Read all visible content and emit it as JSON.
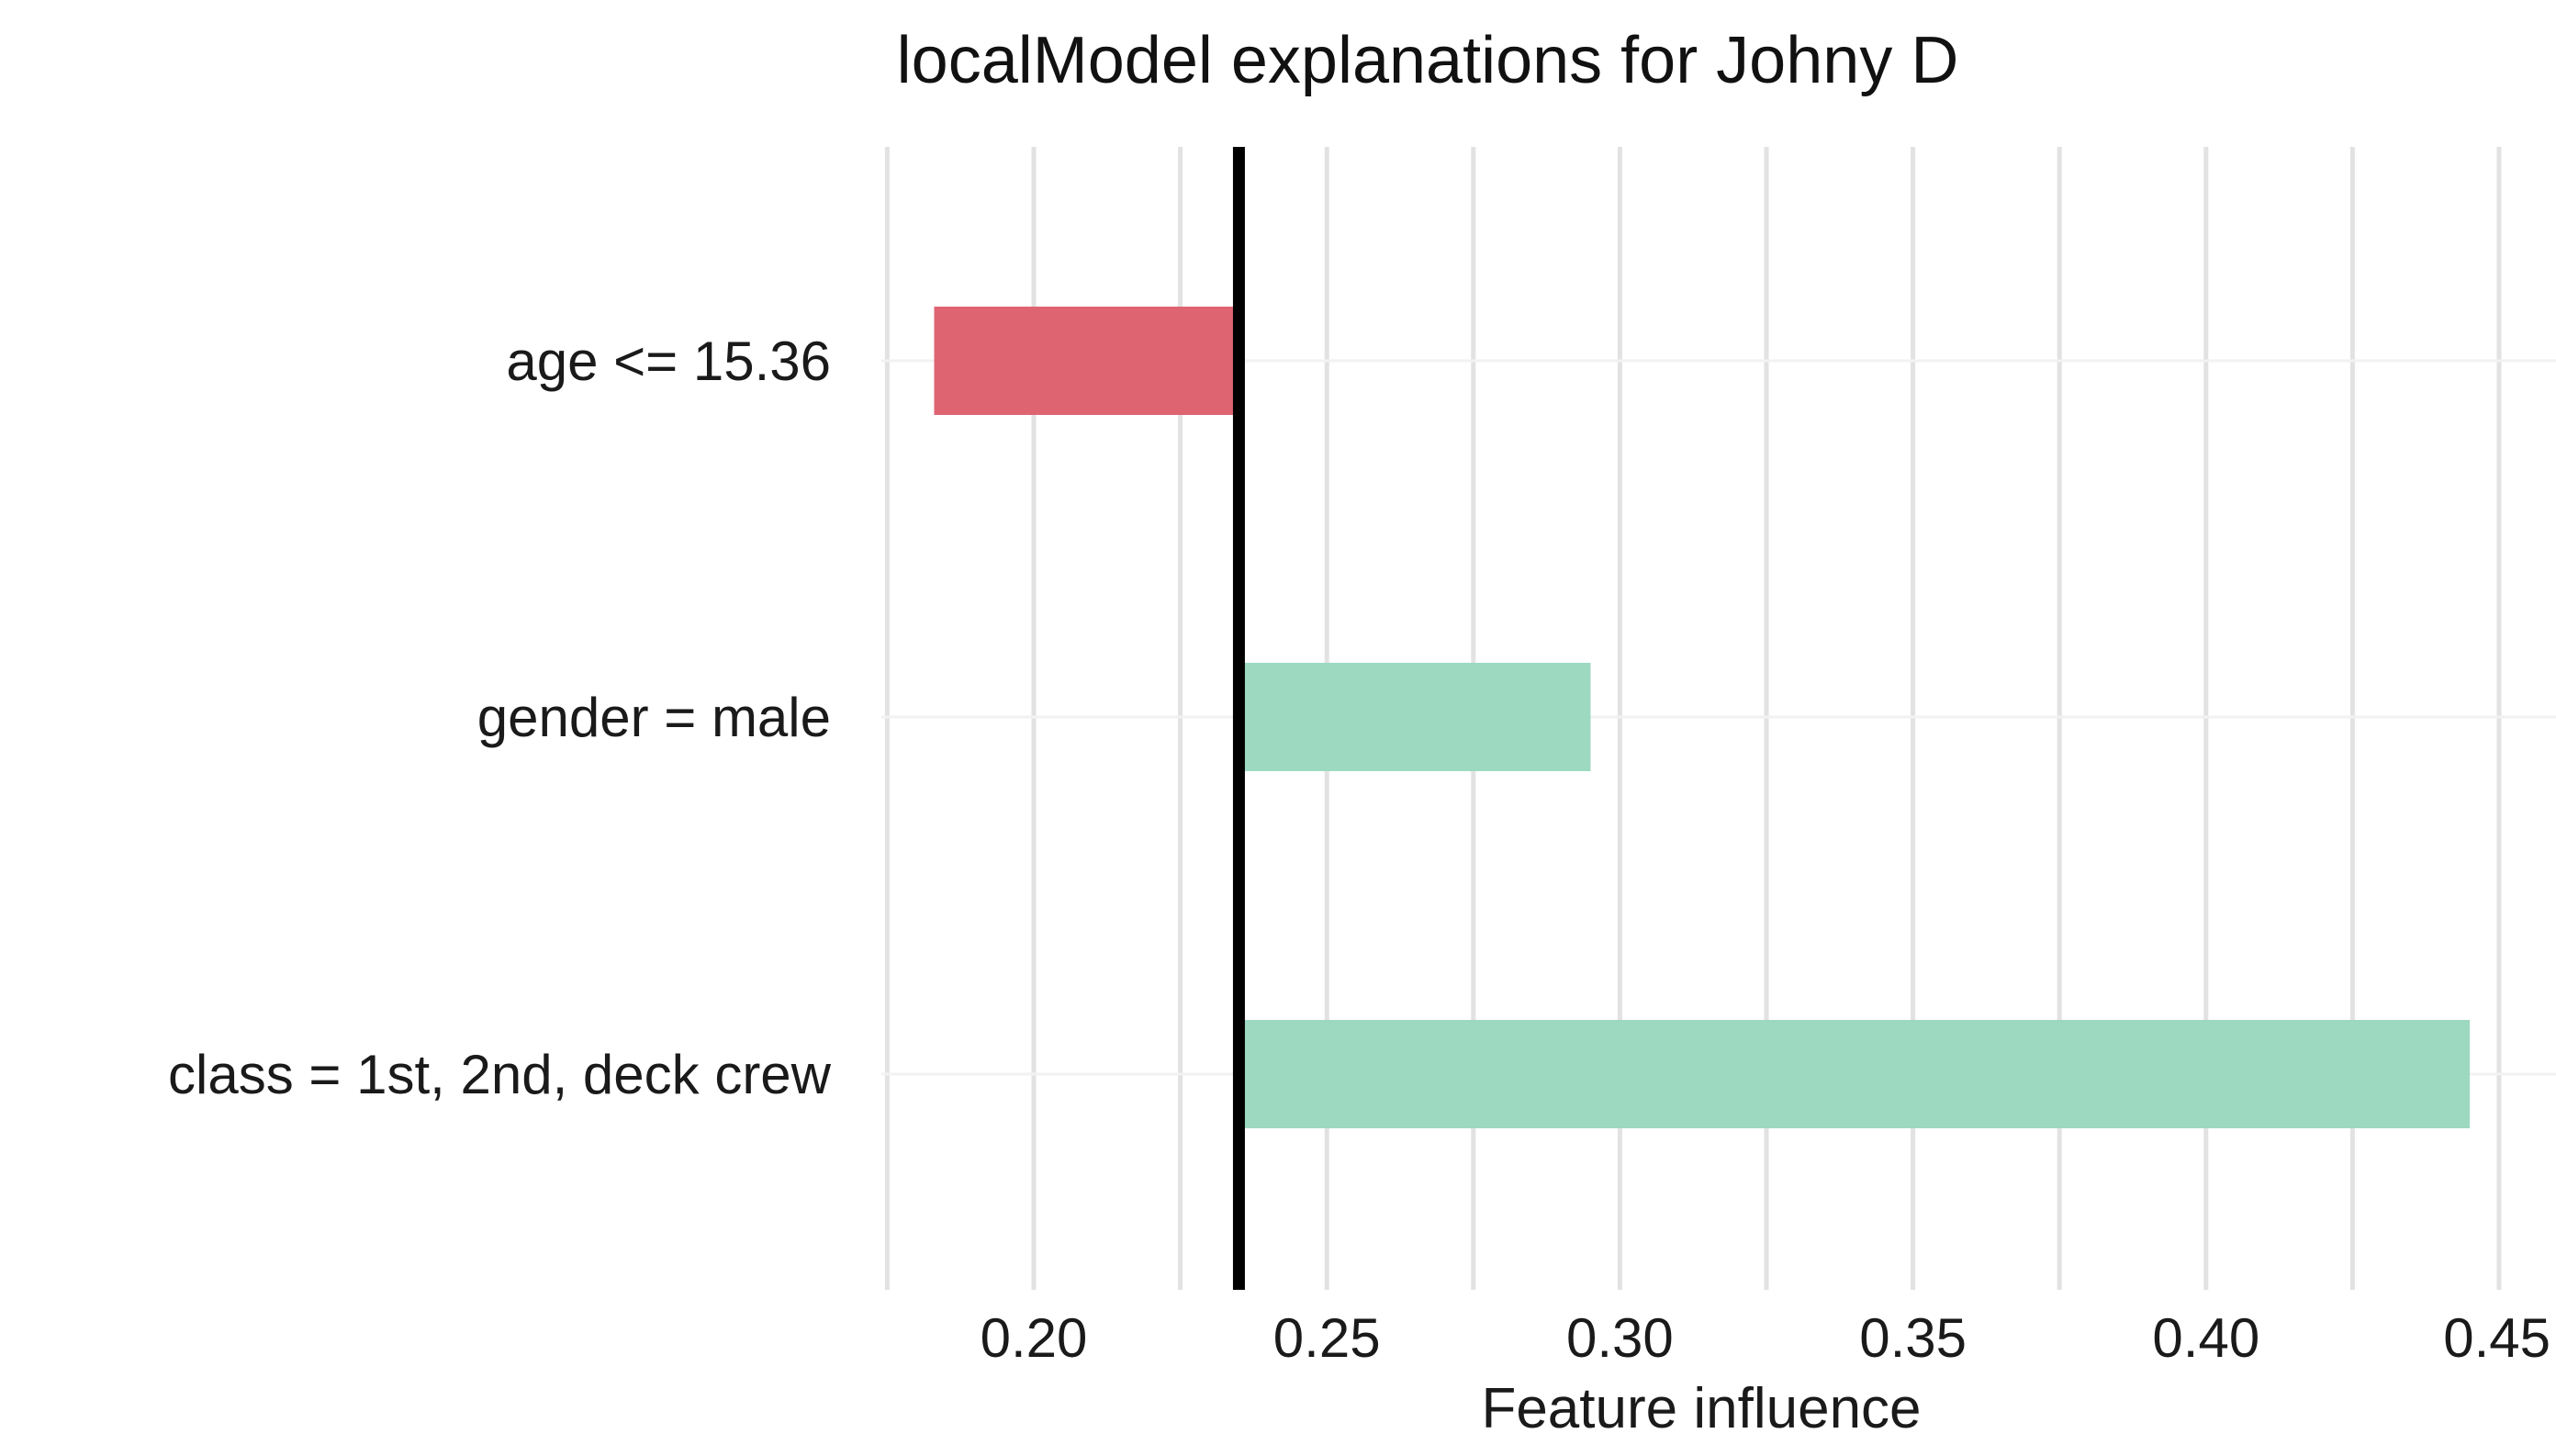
{
  "chart_data": {
    "type": "bar",
    "orientation": "horizontal",
    "title": "localModel explanations for Johny D",
    "xlabel": "Feature influence",
    "ylabel": "",
    "baseline": 0.235,
    "xlim": [
      0.175,
      0.45
    ],
    "xticks": [
      0.2,
      0.25,
      0.3,
      0.35,
      0.4,
      0.45
    ],
    "xtick_labels": [
      "0.20",
      "0.25",
      "0.30",
      "0.35",
      "0.40",
      "0.45"
    ],
    "grid": true,
    "legend": "none",
    "bars": [
      {
        "label": "age <= 15.36",
        "value": 0.183,
        "color": "#df6472"
      },
      {
        "label": "gender = male",
        "value": 0.295,
        "color": "#9cd9c0"
      },
      {
        "label": "class = 1st, 2nd, deck crew",
        "value": 0.445,
        "color": "#9cd9c0"
      }
    ]
  }
}
